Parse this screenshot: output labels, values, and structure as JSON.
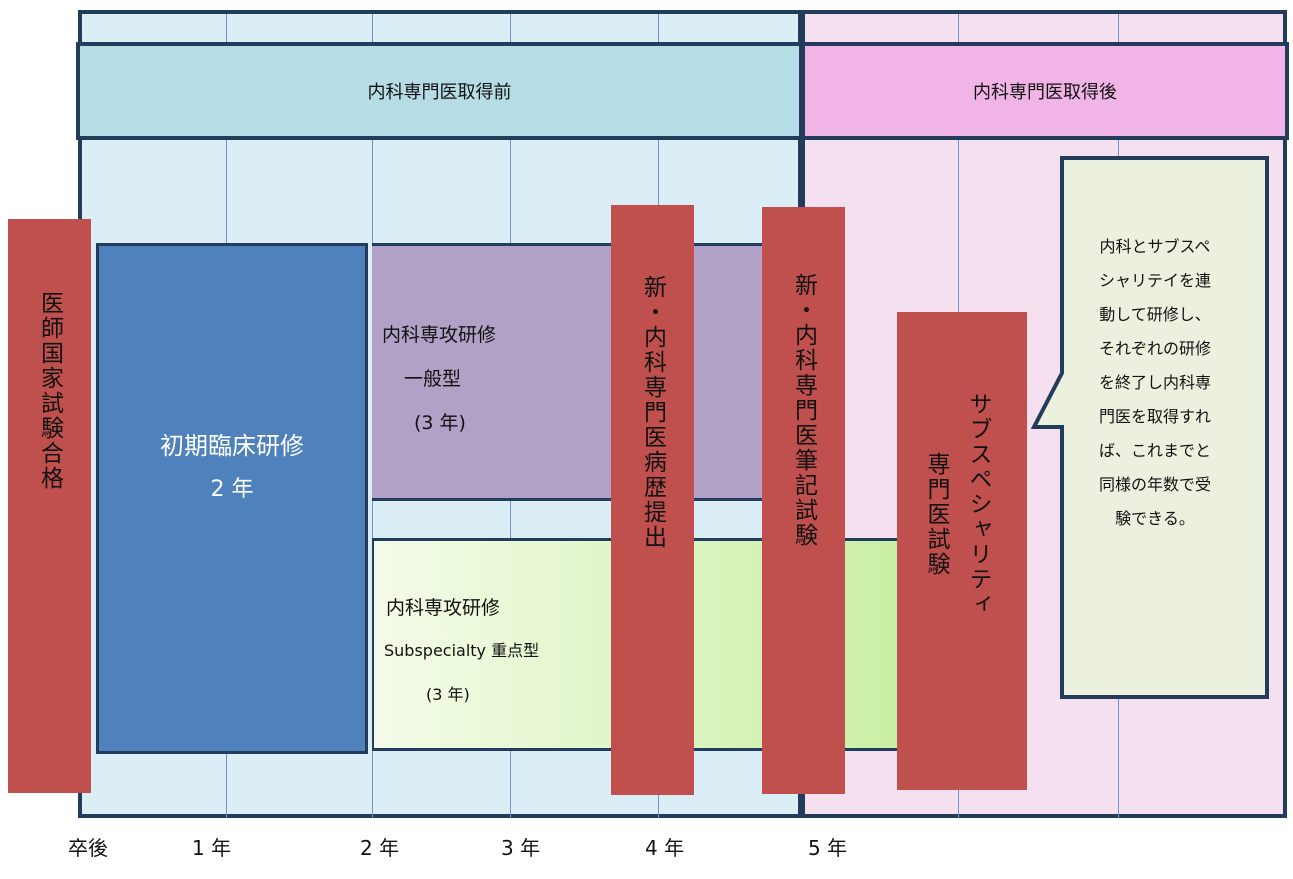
{
  "bands": {
    "before": "内科専門医取得前",
    "after": "内科専門医取得後"
  },
  "exam_national": "医師国家試験合格",
  "shoki": {
    "line1": "初期臨床研修",
    "line2": "2 年"
  },
  "ippan": {
    "line1": "内科専攻研修",
    "line2": "一般型",
    "line3": "(3 年)"
  },
  "sub": {
    "line1": "内科専攻研修",
    "line2": "Subspecialty 重点型",
    "line3": "(3 年)"
  },
  "byoreki": "新・内科専門医病歴提出",
  "hikki": "新・内科専門医筆記試験",
  "subspecialty_exam": {
    "col_a": "サブスペシャリティ",
    "col_b": "専門医試験"
  },
  "callout_lines": [
    "内科とサブスペ",
    "シャリテイを連",
    "動して研修し、",
    "それぞれの研修",
    "を終了し内科専",
    "門医を取得すれ",
    "ば、これまでと",
    "同様の年数で受",
    "験できる。"
  ],
  "axis_labels": [
    "卒後",
    "1 年",
    "2 年",
    "3 年",
    "4 年",
    "5 年"
  ],
  "colors": {
    "exam_red": "#c0504d",
    "initial_blue": "#4f81bd",
    "general_purple": "#b2a1c7",
    "sub_green": "#c9efa4",
    "before_band": "#b6dce6",
    "after_band": "#f0b4e6"
  }
}
